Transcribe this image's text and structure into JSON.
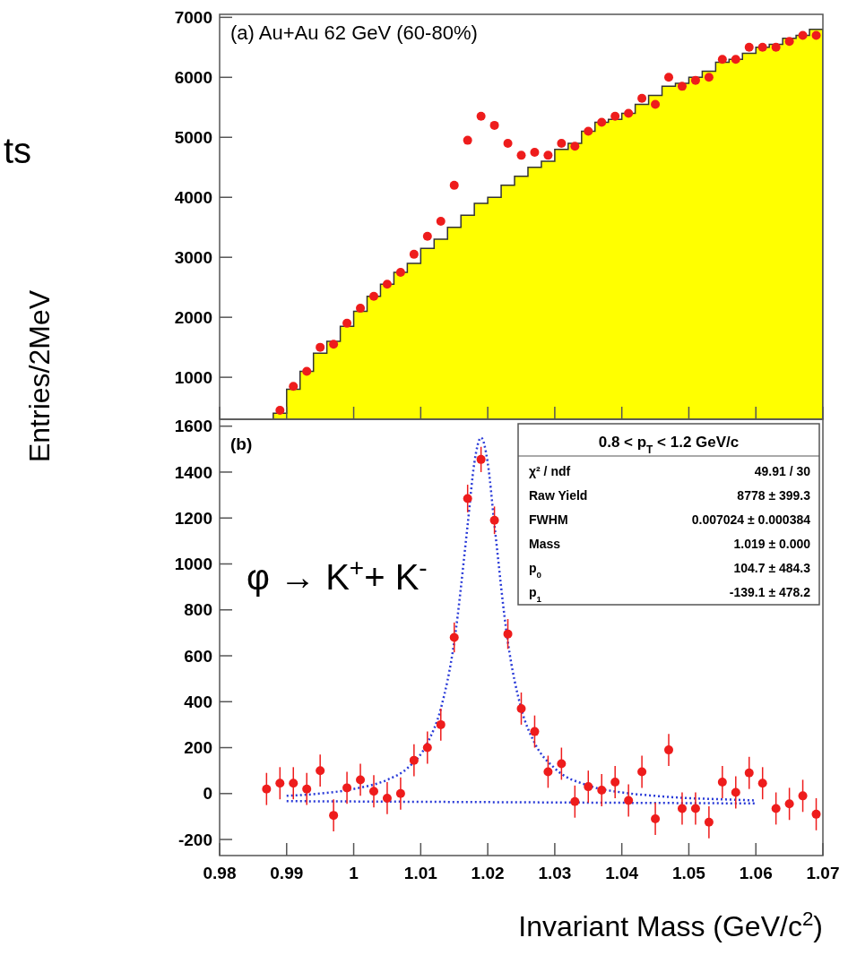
{
  "chart_data": [
    {
      "type": "histogram",
      "ylabel": "Entries/2MeV",
      "annotations": [
        "(a) Au+Au 62 GeV (60-80%)",
        "ts"
      ],
      "xlim": [
        0.98,
        1.07
      ],
      "ylim": [
        300,
        7050
      ],
      "xticks": [
        0.98,
        0.99,
        1,
        1.01,
        1.02,
        1.03,
        1.04,
        1.05,
        1.06,
        1.07
      ],
      "yticks": [
        1000,
        2000,
        3000,
        4000,
        5000,
        6000,
        7000
      ],
      "tick_labels": "y",
      "series": [
        {
          "color": "#ffff00",
          "bins": [
            0.988,
            0.99,
            0.992,
            0.994,
            0.996,
            0.998,
            1.0,
            1.002,
            1.004,
            1.006,
            1.008,
            1.01,
            1.012,
            1.014,
            1.016,
            1.018,
            1.02,
            1.022,
            1.024,
            1.026,
            1.028,
            1.03,
            1.032,
            1.034,
            1.036,
            1.038,
            1.04,
            1.042,
            1.044,
            1.046,
            1.048,
            1.05,
            1.052,
            1.054,
            1.056,
            1.058,
            1.06,
            1.062,
            1.064,
            1.066,
            1.068,
            1.07
          ],
          "values": [
            400,
            800,
            1100,
            1400,
            1600,
            1850,
            2100,
            2350,
            2550,
            2750,
            2900,
            3150,
            3300,
            3500,
            3700,
            3900,
            4000,
            4200,
            4350,
            4500,
            4600,
            4800,
            4900,
            5100,
            5250,
            5300,
            5400,
            5550,
            5700,
            5850,
            5900,
            6000,
            6100,
            6250,
            6300,
            6400,
            6500,
            6550,
            6650,
            6700,
            6800
          ]
        },
        {
          "type": "scatter",
          "color": "#ee1c1c",
          "marker": "circle",
          "x": [
            0.989,
            0.991,
            0.993,
            0.995,
            0.997,
            0.999,
            1.001,
            1.003,
            1.005,
            1.007,
            1.009,
            1.011,
            1.013,
            1.015,
            1.017,
            1.019,
            1.021,
            1.023,
            1.025,
            1.027,
            1.029,
            1.031,
            1.033,
            1.035,
            1.037,
            1.039,
            1.041,
            1.043,
            1.045,
            1.047,
            1.049,
            1.051,
            1.053,
            1.055,
            1.057,
            1.059,
            1.061,
            1.063,
            1.065,
            1.067,
            1.069
          ],
          "values": [
            450,
            850,
            1100,
            1500,
            1550,
            1900,
            2150,
            2350,
            2550,
            2750,
            3050,
            3350,
            3600,
            4200,
            4950,
            5350,
            5200,
            4900,
            4700,
            4750,
            4700,
            4900,
            4850,
            5100,
            5250,
            5350,
            5400,
            5650,
            5550,
            6000,
            5850,
            5950,
            6000,
            6300,
            6300,
            6500,
            6500,
            6500,
            6600,
            6700,
            6700
          ]
        }
      ]
    },
    {
      "type": "scatter",
      "xlabel": "Invariant Mass (GeV/c$^{2}$)",
      "annotations": [
        "(b)",
        "φ → K$^{+}$+ K$^{-}$",
        "0.8 < p$_{T}$ < 1.2 GeV/c",
        "χ² / ndf",
        "49.91 / 30",
        "Raw Yield",
        "8778 ± 399.3",
        "FWHM",
        "0.007024 ± 0.000384",
        "Mass",
        "1.019 ± 0.000",
        "p$_{0}$",
        "104.7 ± 484.3",
        "p$_{1}$",
        "-139.1 ± 478.2"
      ],
      "xlim": [
        0.98,
        1.07
      ],
      "ylim": [
        -270,
        1630
      ],
      "xticks": [
        0.98,
        0.99,
        1,
        1.01,
        1.02,
        1.03,
        1.04,
        1.05,
        1.06,
        1.07
      ],
      "yticks": [
        -200,
        0,
        200,
        400,
        600,
        800,
        1000,
        1200,
        1400,
        1600
      ],
      "series": [
        {
          "type": "line",
          "color": "#2a3bd8",
          "line_style": "dotted",
          "x": [
            0.99,
            0.995,
            1.0,
            1.005,
            1.008,
            1.011,
            1.013,
            1.015,
            1.017,
            1.018,
            1.019,
            1.02,
            1.021,
            1.023,
            1.025,
            1.027,
            1.03,
            1.035,
            1.04,
            1.045,
            1.05,
            1.055,
            1.06
          ],
          "values": [
            -10,
            0,
            20,
            60,
            110,
            220,
            370,
            660,
            1170,
            1440,
            1550,
            1440,
            1170,
            660,
            370,
            220,
            110,
            35,
            5,
            -10,
            -20,
            -25,
            -30
          ]
        },
        {
          "type": "line",
          "color": "#2a3bd8",
          "line_style": "dotted",
          "x": [
            0.99,
            1.06
          ],
          "values": [
            -33,
            -43
          ]
        },
        {
          "color": "#ee1c1c",
          "marker": "circle",
          "x": [
            0.987,
            0.989,
            0.991,
            0.993,
            0.995,
            0.997,
            0.999,
            1.001,
            1.003,
            1.005,
            1.007,
            1.009,
            1.011,
            1.013,
            1.015,
            1.017,
            1.019,
            1.021,
            1.023,
            1.025,
            1.027,
            1.029,
            1.031,
            1.033,
            1.035,
            1.037,
            1.039,
            1.041,
            1.043,
            1.045,
            1.047,
            1.049,
            1.051,
            1.053,
            1.055,
            1.057,
            1.059,
            1.061,
            1.063,
            1.065,
            1.067,
            1.069
          ],
          "values": [
            20,
            45,
            45,
            20,
            100,
            -95,
            25,
            60,
            10,
            -20,
            0,
            145,
            200,
            300,
            680,
            1285,
            1455,
            1190,
            695,
            370,
            270,
            95,
            130,
            -35,
            30,
            15,
            50,
            -30,
            95,
            -110,
            190,
            -65,
            -65,
            -125,
            50,
            5,
            90,
            45,
            -65,
            -45,
            -10,
            -90
          ],
          "errors": [
            70,
            70,
            70,
            70,
            70,
            70,
            70,
            70,
            70,
            70,
            70,
            70,
            70,
            70,
            65,
            60,
            55,
            60,
            65,
            70,
            70,
            70,
            70,
            70,
            70,
            70,
            70,
            70,
            70,
            70,
            70,
            70,
            70,
            70,
            70,
            70,
            70,
            70,
            70,
            70,
            70,
            70
          ]
        }
      ]
    }
  ]
}
